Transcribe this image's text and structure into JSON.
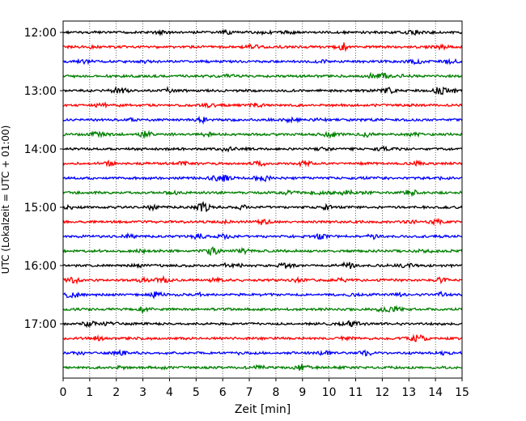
{
  "chart_data": {
    "type": "line",
    "title": "",
    "xlabel": "Zeit  [min]",
    "ylabel": "UTC (Lokalzeit = UTC + 01:00)",
    "xlim": [
      0,
      15
    ],
    "x_ticks": [
      0,
      1,
      2,
      3,
      4,
      5,
      6,
      7,
      8,
      9,
      10,
      11,
      12,
      13,
      14,
      15
    ],
    "x_tick_labels": [
      "0",
      "1",
      "2",
      "3",
      "4",
      "5",
      "6",
      "7",
      "8",
      "9",
      "10",
      "11",
      "12",
      "13",
      "14",
      "15"
    ],
    "y_tick_labels": [
      "12:00",
      "13:00",
      "14:00",
      "15:00",
      "16:00",
      "17:00"
    ],
    "grid": {
      "vertical": true,
      "style": "dotted"
    },
    "trace_interval_min": 15,
    "trace_start": "12:00",
    "trace_colors": [
      "#000000",
      "#ff0000",
      "#0000ff",
      "#008000"
    ],
    "series": [
      {
        "start": "12:00",
        "color": "#000000"
      },
      {
        "start": "12:15",
        "color": "#ff0000"
      },
      {
        "start": "12:30",
        "color": "#0000ff"
      },
      {
        "start": "12:45",
        "color": "#008000"
      },
      {
        "start": "13:00",
        "color": "#000000"
      },
      {
        "start": "13:15",
        "color": "#ff0000"
      },
      {
        "start": "13:30",
        "color": "#0000ff"
      },
      {
        "start": "13:45",
        "color": "#008000"
      },
      {
        "start": "14:00",
        "color": "#000000"
      },
      {
        "start": "14:15",
        "color": "#ff0000"
      },
      {
        "start": "14:30",
        "color": "#0000ff"
      },
      {
        "start": "14:45",
        "color": "#008000"
      },
      {
        "start": "15:00",
        "color": "#000000"
      },
      {
        "start": "15:15",
        "color": "#ff0000"
      },
      {
        "start": "15:30",
        "color": "#0000ff"
      },
      {
        "start": "15:45",
        "color": "#008000"
      },
      {
        "start": "16:00",
        "color": "#000000"
      },
      {
        "start": "16:15",
        "color": "#ff0000"
      },
      {
        "start": "16:30",
        "color": "#0000ff"
      },
      {
        "start": "16:45",
        "color": "#008000"
      },
      {
        "start": "17:00",
        "color": "#000000"
      },
      {
        "start": "17:15",
        "color": "#ff0000"
      },
      {
        "start": "17:30",
        "color": "#0000ff"
      },
      {
        "start": "17:45",
        "color": "#008000"
      }
    ]
  }
}
